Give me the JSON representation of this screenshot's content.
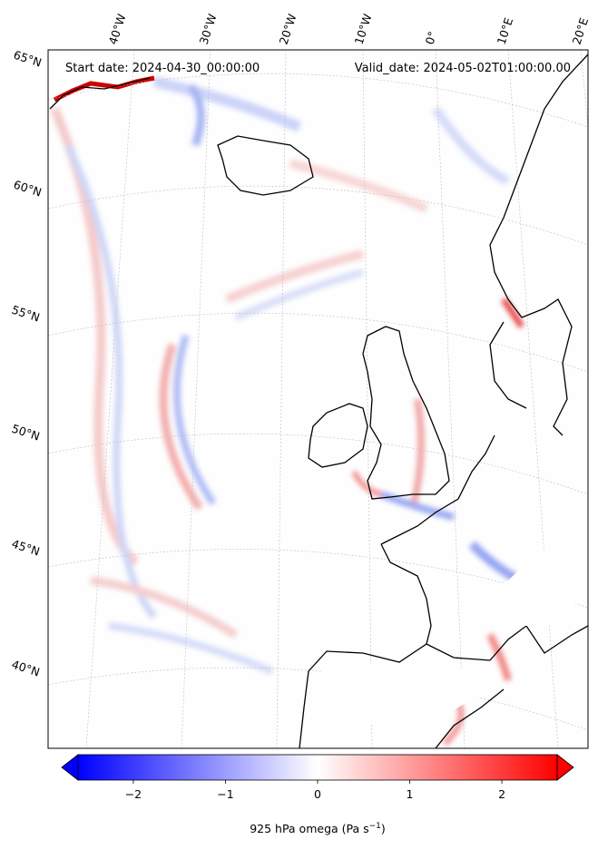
{
  "header": {
    "start_date": "Start date: 2024-04-30_00:00:00",
    "valid_date": "Valid_date: 2024-05-02T01:00:00.00"
  },
  "map": {
    "projection": "conic",
    "lon_labels": [
      "40°W",
      "30°W",
      "20°W",
      "10°W",
      "0°",
      "10°E",
      "20°E"
    ],
    "lat_labels": [
      "65°N",
      "60°N",
      "55°N",
      "50°N",
      "45°N",
      "40°N"
    ],
    "gridlines": "dashed",
    "coastlines": true,
    "colors": {
      "negative": "#0000ff",
      "zero": "#ffffff",
      "positive": "#ff0000",
      "coast": "#000000",
      "masked": "#ffffff"
    }
  },
  "colorbar": {
    "label": "925 hPa omega (Pa s",
    "label_sup": "−1",
    "label_tail": ")",
    "ticks": [
      "−2",
      "−1",
      "0",
      "1",
      "2"
    ],
    "tick_values": [
      -2,
      -1,
      0,
      1,
      2
    ],
    "range": [
      -2.6,
      2.6
    ],
    "extend": "both",
    "cmap": "bwr"
  }
}
